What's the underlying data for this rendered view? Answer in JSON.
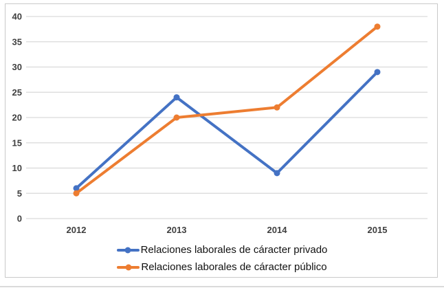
{
  "chart_data": {
    "type": "line",
    "title": "",
    "xlabel": "",
    "ylabel": "",
    "categories": [
      "2012",
      "2013",
      "2014",
      "2015"
    ],
    "series": [
      {
        "name": "Relaciones laborales de cáracter privado",
        "color": "#4472C4",
        "values": [
          6,
          24,
          9,
          29
        ]
      },
      {
        "name": "Relaciones laborales de cáracter público",
        "color": "#ED7D31",
        "values": [
          5,
          20,
          22,
          38
        ]
      }
    ],
    "y_axis": {
      "min": 0,
      "max": 40,
      "step": 5,
      "tick_labels": [
        "0",
        "5",
        "10",
        "15",
        "20",
        "25",
        "30",
        "35",
        "40"
      ]
    },
    "grid": true,
    "legend_position": "bottom",
    "marker": "circle",
    "colors": {
      "gridline": "#D9D9D9",
      "tick_label": "#3F3F3F",
      "chart_border": "#C9C9C9",
      "background": "#FFFFFF"
    }
  }
}
